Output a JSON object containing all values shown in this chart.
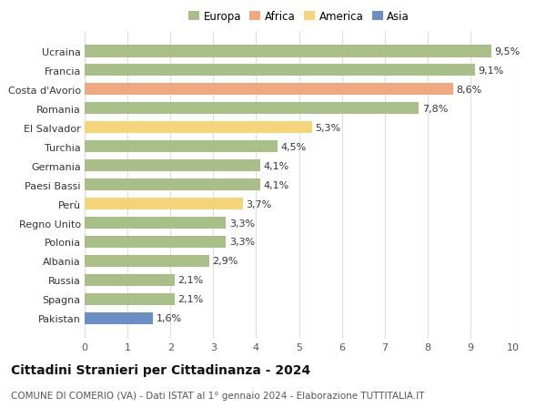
{
  "categories": [
    "Pakistan",
    "Spagna",
    "Russia",
    "Albania",
    "Polonia",
    "Regno Unito",
    "Perù",
    "Paesi Bassi",
    "Germania",
    "Turchia",
    "El Salvador",
    "Romania",
    "Costa d'Avorio",
    "Francia",
    "Ucraina"
  ],
  "values": [
    1.6,
    2.1,
    2.1,
    2.9,
    3.3,
    3.3,
    3.7,
    4.1,
    4.1,
    4.5,
    5.3,
    7.8,
    8.6,
    9.1,
    9.5
  ],
  "colors": [
    "#6b8ec4",
    "#a8c087",
    "#a8c087",
    "#a8c087",
    "#a8c087",
    "#a8c087",
    "#f5d57a",
    "#a8c087",
    "#a8c087",
    "#a8c087",
    "#f5d57a",
    "#a8c087",
    "#f0a880",
    "#a8c087",
    "#a8c087"
  ],
  "labels": [
    "1,6%",
    "2,1%",
    "2,1%",
    "2,9%",
    "3,3%",
    "3,3%",
    "3,7%",
    "4,1%",
    "4,1%",
    "4,5%",
    "5,3%",
    "7,8%",
    "8,6%",
    "9,1%",
    "9,5%"
  ],
  "legend": {
    "Europa": "#a8c087",
    "Africa": "#f0a880",
    "America": "#f5d57a",
    "Asia": "#6b8ec4"
  },
  "title": "Cittadini Stranieri per Cittadinanza - 2024",
  "subtitle": "COMUNE DI COMERIO (VA) - Dati ISTAT al 1° gennaio 2024 - Elaborazione TUTTITALIA.IT",
  "xlim": [
    0,
    10
  ],
  "xticks": [
    0,
    1,
    2,
    3,
    4,
    5,
    6,
    7,
    8,
    9,
    10
  ],
  "bar_height": 0.65,
  "figsize": [
    6.0,
    4.6
  ],
  "dpi": 100,
  "bg_color": "#ffffff",
  "grid_color": "#dddddd",
  "title_fontsize": 10,
  "subtitle_fontsize": 7.5,
  "tick_fontsize": 8,
  "label_fontsize": 8
}
